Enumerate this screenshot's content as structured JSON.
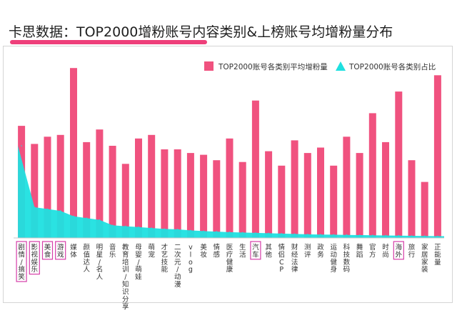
{
  "title": "卡思数据：TOP2000增粉账号内容类别&上榜账号均增粉量分布",
  "chart_data": {
    "type": "bar",
    "title": "卡思数据：TOP2000增粉账号内容类别&上榜账号均增粉量分布",
    "categories": [
      "剧情/搞笑",
      "影视娱乐",
      "美食",
      "游戏",
      "媒体",
      "颜值达人",
      "明星/名人",
      "音乐",
      "教育培训/知识分享",
      "母婴/萌娃",
      "萌宠",
      "才艺技能",
      "二次元/动漫",
      "vlog",
      "美妆",
      "情感",
      "医疗健康",
      "生活",
      "汽车",
      "其他",
      "情侣CP",
      "财经法律",
      "测评",
      "政务",
      "运动健身",
      "科技数码",
      "舞蹈",
      "官方",
      "时尚",
      "海外",
      "旅行",
      "家居家装",
      "正能量"
    ],
    "highlighted_categories": [
      "剧情/搞笑",
      "影视娱乐",
      "美食",
      "游戏",
      "汽车",
      "海外"
    ],
    "series": [
      {
        "name": "TOP2000账号各类别平均增粉量",
        "type": "bar",
        "color": "#f0527f",
        "values": [
          62,
          52,
          56,
          57,
          94,
          53,
          60,
          51,
          41,
          55,
          57,
          49,
          49,
          47,
          46,
          43,
          55,
          42,
          76,
          48,
          40,
          54,
          47,
          50,
          40,
          56,
          47,
          69,
          53,
          81,
          43,
          31,
          90
        ]
      },
      {
        "name": "TOP2000账号各类别占比",
        "type": "area",
        "color": "#1fe0e0",
        "values": [
          51,
          17,
          16,
          15,
          12,
          11,
          10,
          7,
          6.5,
          6,
          5.5,
          5,
          4.8,
          4.2,
          3.8,
          3.5,
          3.2,
          3.0,
          2.8,
          2.6,
          2.4,
          2.2,
          2.0,
          1.9,
          1.8,
          1.7,
          1.6,
          1.5,
          1.4,
          1.3,
          1.2,
          1.1,
          1.0
        ]
      }
    ],
    "ylim": [
      0,
      100
    ],
    "xlabel": "",
    "ylabel": "",
    "legend_position": "top-right",
    "grid": false
  }
}
